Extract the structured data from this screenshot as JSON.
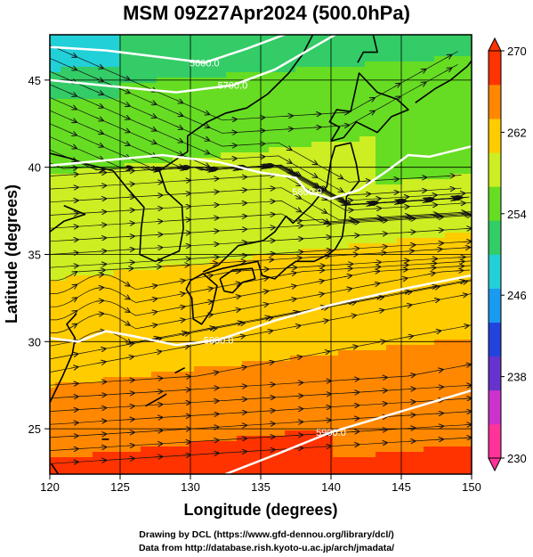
{
  "title": "MSM 09Z27Apr2024 (500.0hPa)",
  "x_axis": {
    "label": "Longitude (degrees)",
    "ticks": [
      "120",
      "125",
      "130",
      "135",
      "140",
      "145",
      "150"
    ],
    "range": [
      120,
      150
    ]
  },
  "y_axis": {
    "label": "Latitude  (degrees)",
    "ticks": [
      "25",
      "30",
      "35",
      "40",
      "45"
    ],
    "range": [
      22.4,
      47.6
    ]
  },
  "colorbar": {
    "ticks": [
      "270",
      "262",
      "254",
      "246",
      "238",
      "230"
    ],
    "range": [
      230,
      270
    ],
    "colors": [
      "#ff3399",
      "#cc33cc",
      "#6633cc",
      "#2244dd",
      "#1a9af0",
      "#22d0d8",
      "#33cc66",
      "#66dd22",
      "#ccee22",
      "#ffcc00",
      "#ff8800",
      "#ff3300"
    ]
  },
  "contours": [
    {
      "label": "5600.0",
      "points": [
        [
          120,
          46.9
        ],
        [
          124,
          46.7
        ],
        [
          128,
          46.3
        ],
        [
          131,
          46.0
        ],
        [
          134,
          46.8
        ],
        [
          137,
          47.7
        ]
      ]
    },
    {
      "label": "5700.0",
      "points": [
        [
          120,
          45.0
        ],
        [
          125,
          44.6
        ],
        [
          129,
          44.3
        ],
        [
          133,
          44.7
        ],
        [
          136,
          45.6
        ],
        [
          139,
          47.0
        ],
        [
          140.5,
          47.7
        ]
      ]
    },
    {
      "label": "5800.0",
      "points": [
        [
          120,
          40.1
        ],
        [
          124,
          40.4
        ],
        [
          128,
          40.7
        ],
        [
          132,
          40.3
        ],
        [
          135,
          39.7
        ],
        [
          137.5,
          39.4
        ],
        [
          138.3,
          38.6
        ],
        [
          140,
          38.2
        ],
        [
          142,
          38.7
        ],
        [
          144,
          39.8
        ],
        [
          145.5,
          40.7
        ],
        [
          147,
          40.6
        ],
        [
          150,
          41.2
        ]
      ]
    },
    {
      "label": "5800.0",
      "points": [
        [
          120,
          30.2
        ],
        [
          122,
          30.0
        ],
        [
          124,
          30.6
        ],
        [
          126,
          30.3
        ],
        [
          129,
          29.8
        ],
        [
          132,
          30.1
        ],
        [
          136,
          31.2
        ],
        [
          140,
          32.1
        ],
        [
          145,
          33.0
        ],
        [
          150,
          33.8
        ]
      ]
    },
    {
      "label": "5900.0",
      "points": [
        [
          132.5,
          22.4
        ],
        [
          136,
          23.5
        ],
        [
          140,
          24.8
        ],
        [
          145,
          26.0
        ],
        [
          150,
          27.2
        ]
      ]
    }
  ],
  "temperature_field_note": "",
  "credit_line1": "Drawing by DCL (https://www.gfd-dennou.org/library/dcl/)",
  "credit_line2": "Data from http://database.rish.kyoto-u.ac.jp/arch/jmadata/"
}
